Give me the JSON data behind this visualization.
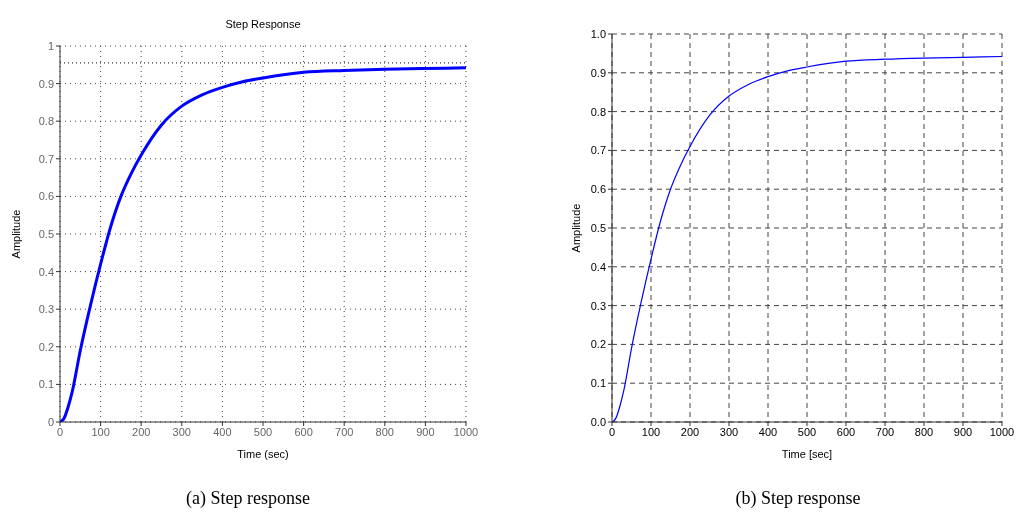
{
  "chart_data": [
    {
      "type": "line",
      "title": "Step Response",
      "xlabel": "Time (sec)",
      "ylabel": "Amplitude",
      "annotations": [
        "(a) Step response"
      ],
      "x": [
        0,
        10,
        20,
        30,
        50,
        75,
        100,
        125,
        150,
        175,
        200,
        250,
        300,
        350,
        400,
        450,
        500,
        600,
        700,
        800,
        900,
        1000
      ],
      "series": [
        {
          "color": "#0000ff",
          "values": [
            0,
            0.01,
            0.04,
            0.08,
            0.19,
            0.31,
            0.42,
            0.52,
            0.6,
            0.66,
            0.71,
            0.79,
            0.84,
            0.87,
            0.89,
            0.905,
            0.915,
            0.93,
            0.935,
            0.938,
            0.94,
            0.942
          ]
        }
      ],
      "xlim": [
        0,
        1000
      ],
      "xticks": [
        0,
        100,
        200,
        300,
        400,
        500,
        600,
        700,
        800,
        900,
        1000
      ],
      "ylim": [
        0,
        1
      ],
      "yticks": [
        0,
        0.1,
        0.2,
        0.3,
        0.4,
        0.5,
        0.6,
        0.7,
        0.8,
        0.9,
        1
      ],
      "ref_lines": [
        {
          "axis": "y",
          "value": 0.955,
          "color": "#000000",
          "line_style": "dotted"
        }
      ],
      "grid": true,
      "marker": "none",
      "line_style": "solid"
    },
    {
      "type": "line",
      "xlabel": "Time [sec]",
      "ylabel": "Amplitude",
      "annotations": [
        "(b) Step response"
      ],
      "x": [
        0,
        10,
        20,
        30,
        50,
        75,
        100,
        125,
        150,
        175,
        200,
        250,
        300,
        350,
        400,
        450,
        500,
        600,
        700,
        800,
        900,
        1000
      ],
      "series": [
        {
          "color": "#0000ff",
          "values": [
            0,
            0.01,
            0.04,
            0.08,
            0.19,
            0.31,
            0.42,
            0.52,
            0.6,
            0.66,
            0.71,
            0.79,
            0.84,
            0.87,
            0.89,
            0.905,
            0.915,
            0.93,
            0.935,
            0.938,
            0.94,
            0.942
          ]
        }
      ],
      "xlim": [
        0,
        1000
      ],
      "xticks": [
        0,
        100,
        200,
        300,
        400,
        500,
        600,
        700,
        800,
        900,
        1000
      ],
      "ylim": [
        0,
        1
      ],
      "yticks": [
        {
          "value": 0,
          "label": "0.0"
        },
        0.1,
        0.2,
        0.3,
        0.4,
        0.5,
        0.6,
        0.7,
        0.8,
        0.9,
        {
          "value": 1,
          "label": "1.0"
        }
      ],
      "grid": true,
      "marker": "none",
      "line_style": "solid"
    }
  ]
}
